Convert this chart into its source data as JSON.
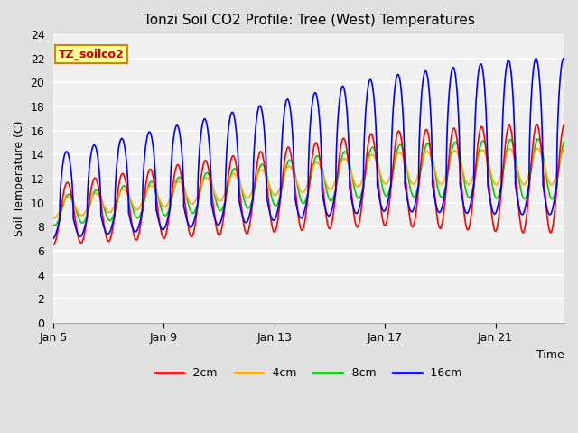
{
  "title": "Tonzi Soil CO2 Profile: Tree (West) Temperatures",
  "xlabel": "Time",
  "ylabel": "Soil Temperature (C)",
  "ylim": [
    0,
    24
  ],
  "xlim_days": [
    0,
    18.5
  ],
  "x_ticks_days": [
    0,
    4,
    8,
    12,
    16
  ],
  "x_tick_labels": [
    "Jan 5",
    "Jan 9",
    "Jan 13",
    "Jan 17",
    "Jan 21"
  ],
  "yticks": [
    0,
    2,
    4,
    6,
    8,
    10,
    12,
    14,
    16,
    18,
    20,
    22,
    24
  ],
  "bg_color": "#e0e0e0",
  "plot_bg_color": "#f0f0f0",
  "line_colors": {
    "-2cm": "#ff0000",
    "-4cm": "#ffa500",
    "-8cm": "#00cc00",
    "-16cm": "#0000ff"
  },
  "legend_label": "TZ_soilco2",
  "legend_bg": "#ffff99",
  "legend_border": "#cc8800",
  "legend_text_color": "#cc0000",
  "series_labels": [
    "-2cm",
    "-4cm",
    "-8cm",
    "-16cm"
  ],
  "line_width": 1.2
}
